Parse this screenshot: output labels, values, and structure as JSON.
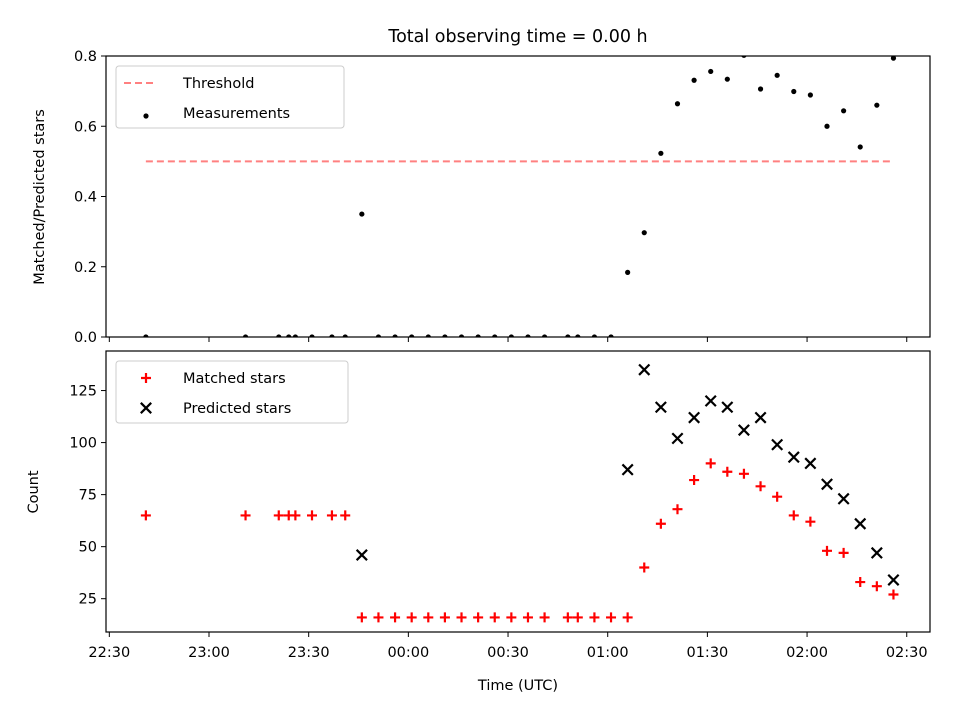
{
  "figure_title": "Total observing time = 0.00 h",
  "chart_data": [
    {
      "type": "scatter",
      "title": "Total observing time = 0.00 h",
      "xlabel": "",
      "ylabel": "Matched/Predicted stars",
      "x_unit": "minutes after 22:30 UTC",
      "xlim": [
        -1,
        247
      ],
      "ylim": [
        0.0,
        0.8
      ],
      "yticks": [
        0.0,
        0.2,
        0.4,
        0.6,
        0.8
      ],
      "ytick_labels": [
        "0.0",
        "0.2",
        "0.4",
        "0.6",
        "0.8"
      ],
      "grid": false,
      "legend": "upper left",
      "series": [
        {
          "name": "Threshold",
          "kind": "line",
          "style": "dashed",
          "color": "#ff8080",
          "x": [
            11,
            236
          ],
          "y": [
            0.5,
            0.5
          ]
        },
        {
          "name": "Measurements",
          "kind": "points",
          "color": "#000000",
          "x": [
            11,
            41,
            51,
            54,
            56,
            61,
            67,
            71,
            76,
            81,
            86,
            91,
            96,
            101,
            106,
            111,
            116,
            121,
            126,
            131,
            138,
            141,
            146,
            151,
            156,
            161,
            166,
            171,
            176,
            181,
            186,
            191,
            196,
            201,
            206,
            211,
            216,
            221,
            226,
            231,
            236
          ],
          "y": [
            0.0,
            0.0,
            0.0,
            0.0,
            0.0,
            0.0,
            0.0,
            0.0,
            0.35,
            0.0,
            0.0,
            0.0,
            0.0,
            0.0,
            0.0,
            0.0,
            0.0,
            0.0,
            0.0,
            0.0,
            0.0,
            0.0,
            0.0,
            0.0,
            0.184,
            0.297,
            0.523,
            0.664,
            0.731,
            0.756,
            0.734,
            0.802,
            0.706,
            0.745,
            0.699,
            0.689,
            0.6,
            0.644,
            0.541,
            0.66,
            0.794
          ]
        }
      ]
    },
    {
      "type": "scatter",
      "title": "",
      "xlabel": "Time (UTC)",
      "ylabel": "Count",
      "x_unit": "minutes after 22:30 UTC",
      "xlim": [
        -1,
        247
      ],
      "ylim": [
        9,
        144
      ],
      "yticks": [
        25,
        50,
        75,
        100,
        125
      ],
      "ytick_labels": [
        "25",
        "50",
        "75",
        "100",
        "125"
      ],
      "xticks": [
        0,
        30,
        60,
        90,
        120,
        150,
        180,
        210,
        240
      ],
      "xtick_labels": [
        "22:30",
        "23:00",
        "23:30",
        "00:00",
        "00:30",
        "01:00",
        "01:30",
        "02:00",
        "02:30"
      ],
      "grid": false,
      "legend": "upper left",
      "series": [
        {
          "name": "Matched stars",
          "marker": "plus",
          "color": "#ff0000",
          "x": [
            11,
            41,
            51,
            54,
            56,
            61,
            67,
            71,
            76,
            81,
            86,
            91,
            96,
            101,
            106,
            111,
            116,
            121,
            126,
            131,
            138,
            141,
            146,
            151,
            156,
            161,
            166,
            171,
            176,
            181,
            186,
            191,
            196,
            201,
            206,
            211,
            216,
            221,
            226,
            231,
            236
          ],
          "y": [
            65,
            65,
            65,
            65,
            65,
            65,
            65,
            65,
            16,
            16,
            16,
            16,
            16,
            16,
            16,
            16,
            16,
            16,
            16,
            16,
            16,
            16,
            16,
            16,
            16,
            40,
            61,
            68,
            82,
            90,
            86,
            85,
            79,
            74,
            65,
            62,
            48,
            47,
            33,
            31,
            27
          ]
        },
        {
          "name": "Predicted stars",
          "marker": "x",
          "color": "#000000",
          "x": [
            76,
            156,
            161,
            166,
            171,
            176,
            181,
            186,
            191,
            196,
            201,
            206,
            211,
            216,
            221,
            226,
            231,
            236
          ],
          "y": [
            46,
            87,
            135,
            117,
            102,
            112,
            120,
            117,
            106,
            112,
            99,
            93,
            90,
            80,
            73,
            61,
            47,
            34
          ]
        }
      ]
    }
  ]
}
